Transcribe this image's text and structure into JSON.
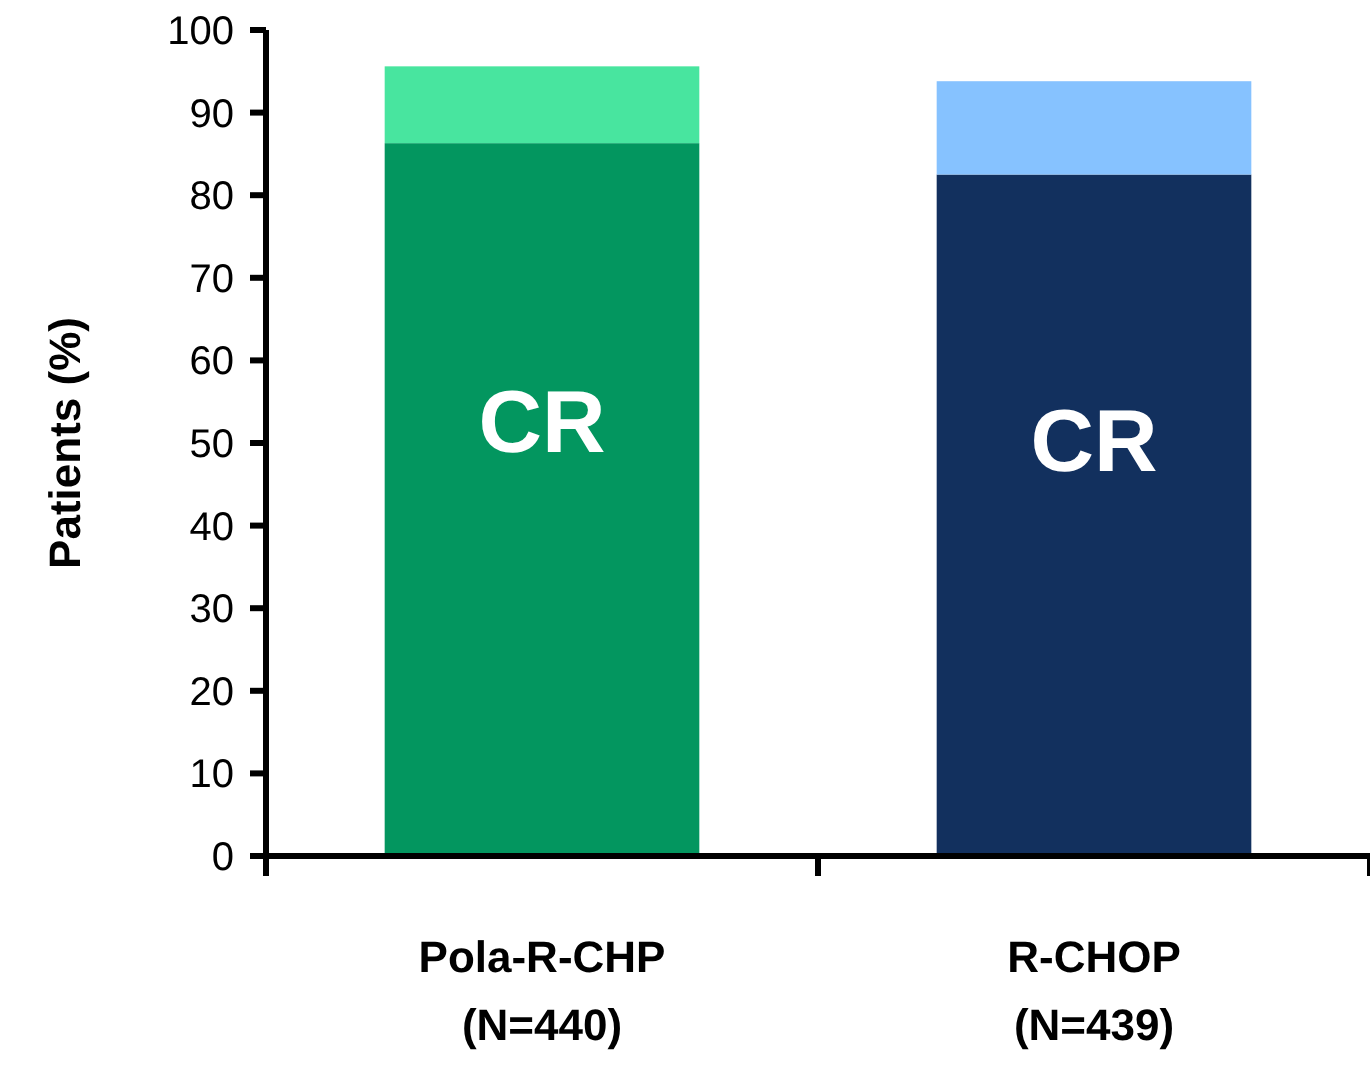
{
  "chart_data": {
    "type": "bar",
    "stacked": true,
    "ylabel": "Patients (%)",
    "categories": [
      "Pola-R-CHP\n(N=440)",
      "R-CHOP\n(N=439)"
    ],
    "series": [
      {
        "colors": [
          "#03965f",
          "#12305e"
        ],
        "values": [
          86.3,
          82.5
        ]
      },
      {
        "colors": [
          "#48e59f",
          "#86c2ff"
        ],
        "values": [
          9.3,
          11.3
        ]
      }
    ],
    "ylim": [
      0,
      100
    ],
    "yticks": [
      0,
      10,
      20,
      30,
      40,
      50,
      60,
      70,
      80,
      90,
      100
    ],
    "grid": false,
    "annotations": [
      "CR",
      "CR"
    ]
  }
}
